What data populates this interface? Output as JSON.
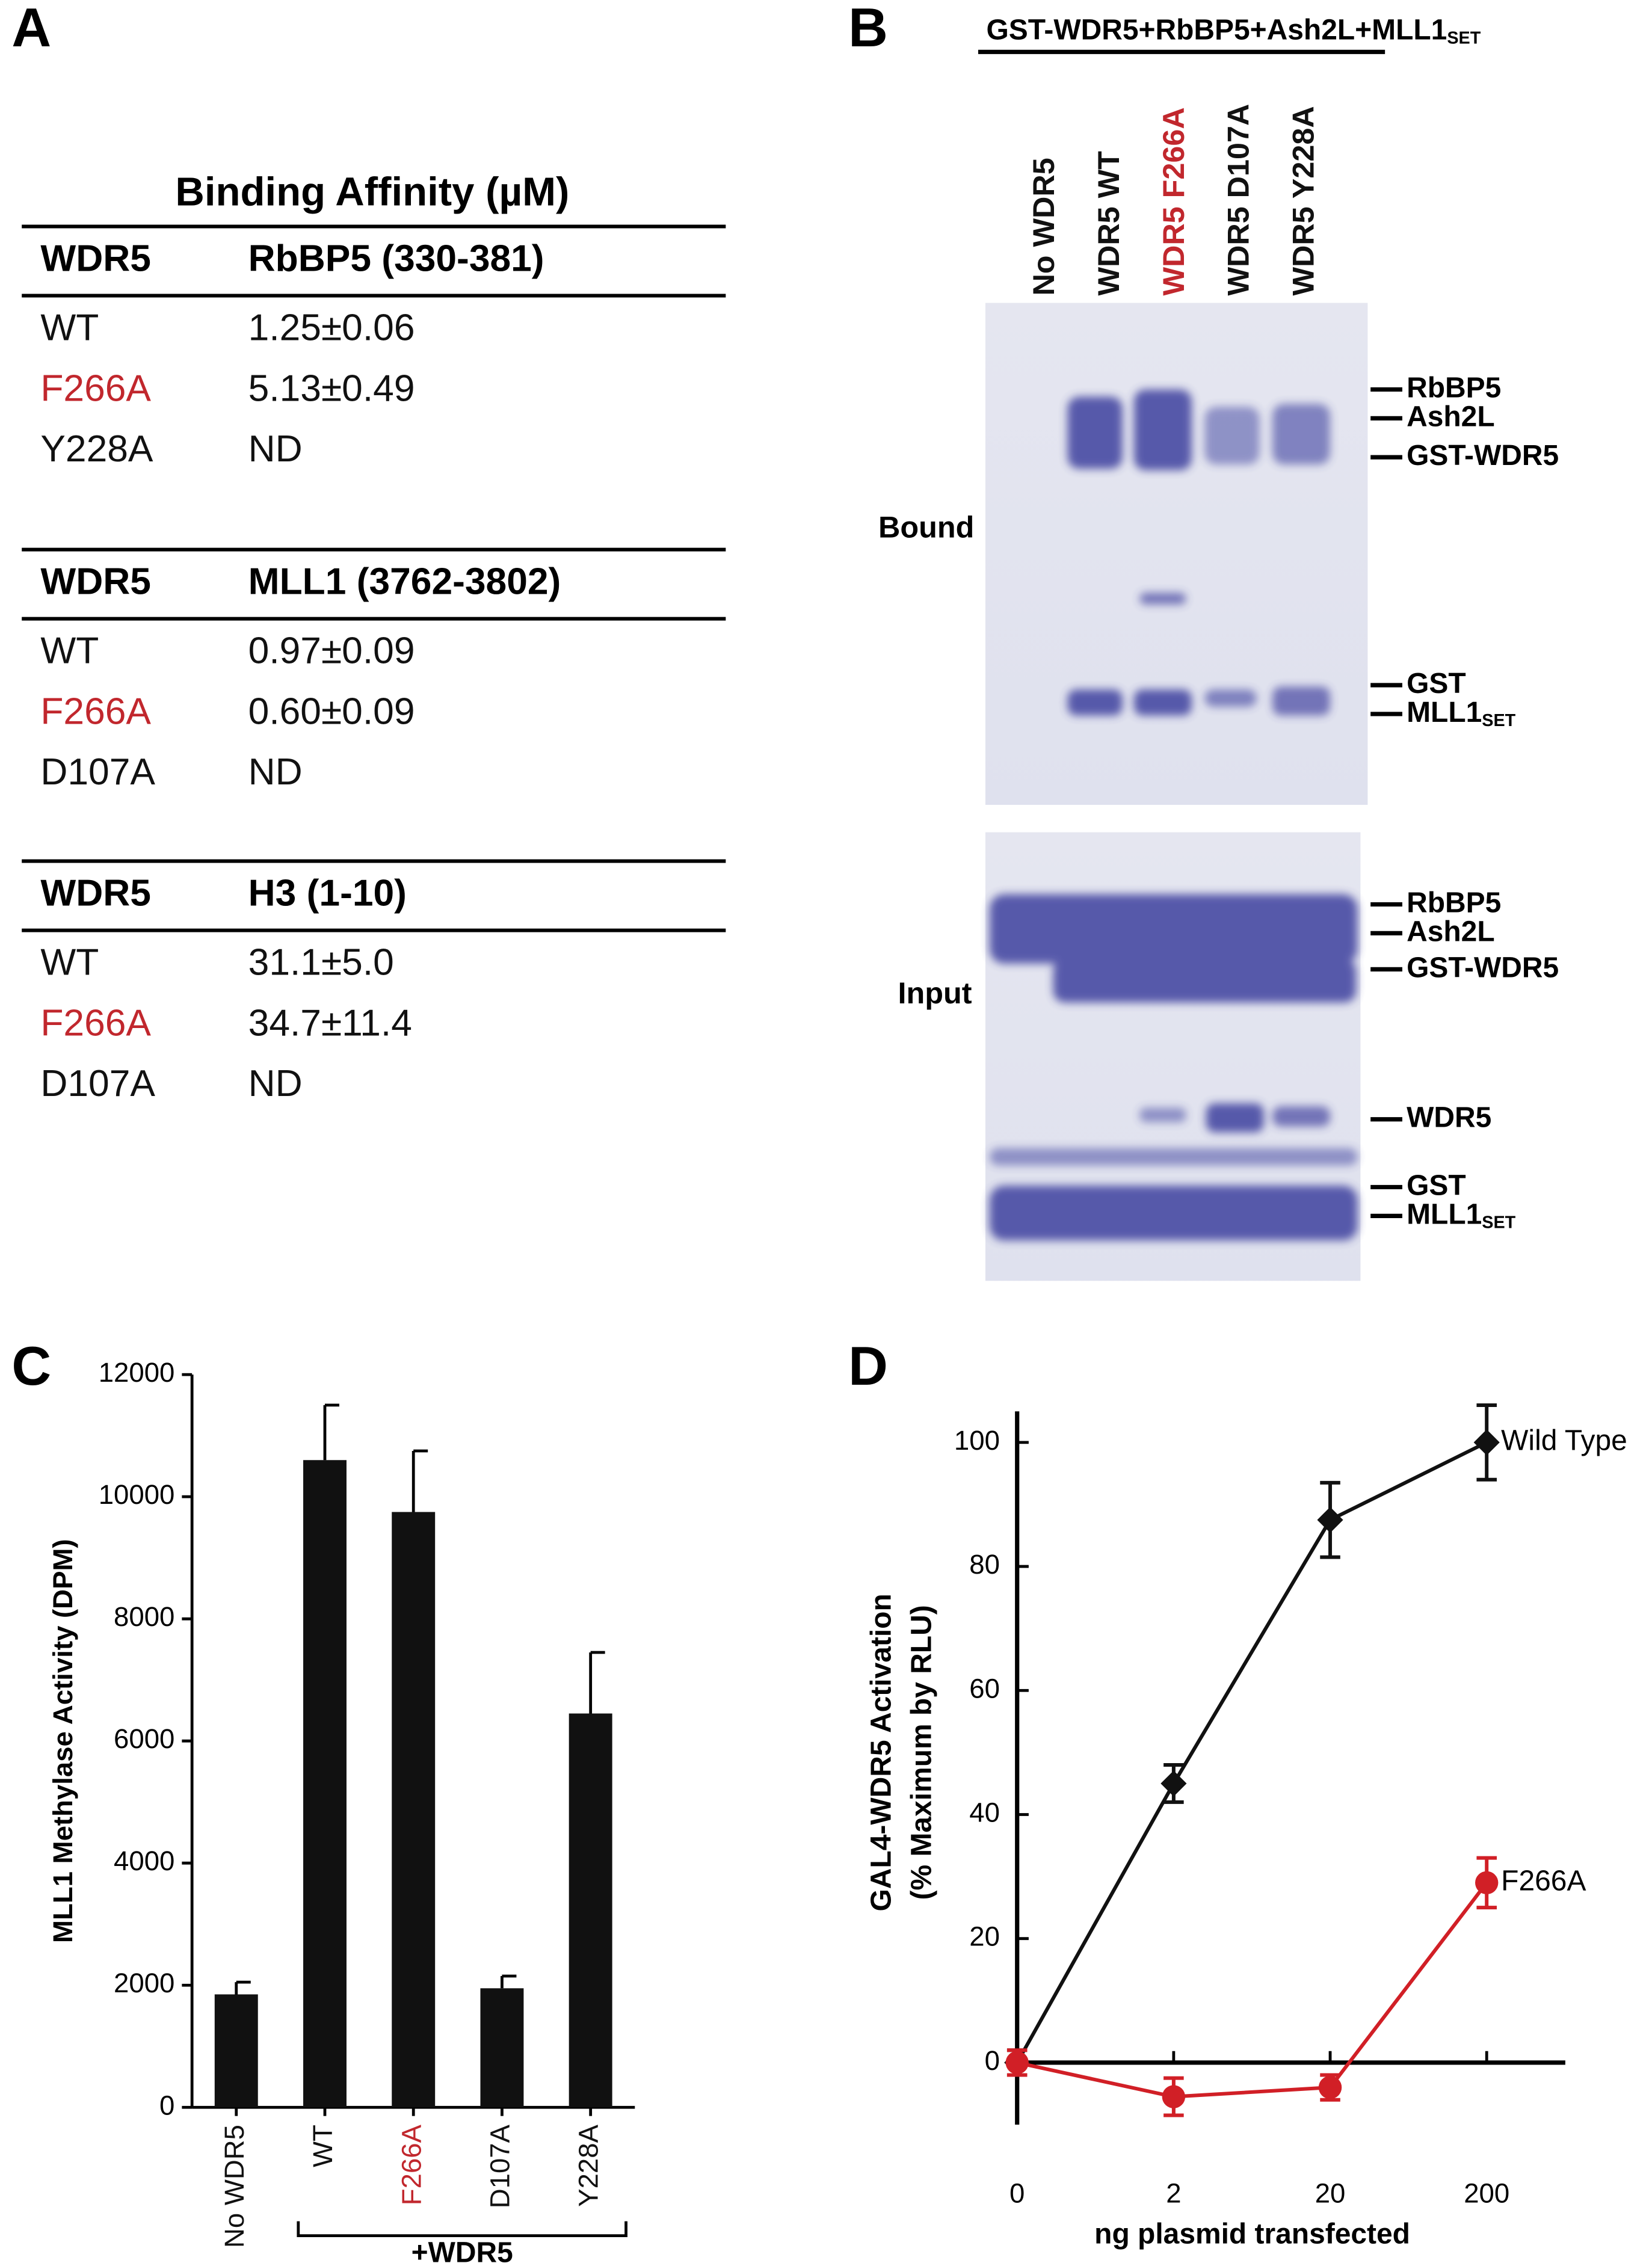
{
  "panel_a": {
    "letter": "A",
    "title": "Binding Affinity (µM)",
    "highlight": "F266A",
    "highlight_color": "#c1272d",
    "tables": [
      {
        "header": [
          "WDR5",
          "RbBP5 (330-381)"
        ],
        "rows": [
          [
            "WT",
            "1.25±0.06"
          ],
          [
            "F266A",
            "5.13±0.49"
          ],
          [
            "Y228A",
            "ND"
          ]
        ]
      },
      {
        "header": [
          "WDR5",
          "MLL1 (3762-3802)"
        ],
        "rows": [
          [
            "WT",
            "0.97±0.09"
          ],
          [
            "F266A",
            "0.60±0.09"
          ],
          [
            "D107A",
            "ND"
          ]
        ]
      },
      {
        "header": [
          "WDR5",
          "H3 (1-10)"
        ],
        "rows": [
          [
            "WT",
            "31.1±5.0"
          ],
          [
            "F266A",
            "34.7±11.4"
          ],
          [
            "D107A",
            "ND"
          ]
        ]
      }
    ]
  },
  "panel_b": {
    "letter": "B",
    "title": "GST-WDR5+RbBP5+Ash2L+MLL1",
    "title_sub": "SET",
    "lanes": [
      "No WDR5",
      "WDR5 WT",
      "WDR5 F266A",
      "WDR5 D107A",
      "WDR5 Y228A"
    ],
    "highlight_lane": 2,
    "highlight_color": "#c1272d",
    "sections": [
      {
        "label": "Bound",
        "bands": [
          {
            "label": "RbBP5"
          },
          {
            "label": "Ash2L"
          },
          {
            "label": "GST-WDR5"
          },
          {
            "label": "GST"
          },
          {
            "label": "MLL1",
            "sub": "SET"
          }
        ]
      },
      {
        "label": "Input",
        "bands": [
          {
            "label": "RbBP5"
          },
          {
            "label": "Ash2L"
          },
          {
            "label": "GST-WDR5"
          },
          {
            "label": "WDR5"
          },
          {
            "label": "GST"
          },
          {
            "label": "MLL1",
            "sub": "SET"
          }
        ]
      }
    ]
  },
  "chart_data": [
    {
      "type": "bar",
      "letter": "C",
      "ylabel": "MLL1 Methylase Activity (DPM)",
      "categories": [
        "No WDR5",
        "WT",
        "F266A",
        "D107A",
        "Y228A"
      ],
      "values": [
        1850,
        10600,
        9750,
        1950,
        6450
      ],
      "errors": [
        200,
        900,
        1000,
        200,
        1000
      ],
      "color": "#111111",
      "category_colors": [
        "#111111",
        "#111111",
        "#c1272d",
        "#111111",
        "#111111"
      ],
      "ylim": [
        0,
        12000
      ],
      "yticks": [
        0,
        2000,
        4000,
        6000,
        8000,
        10000,
        12000
      ],
      "group_label": "+WDR5"
    },
    {
      "type": "line",
      "letter": "D",
      "ylabel": [
        "GAL4-WDR5 Activation",
        "(% Maximum by RLU)"
      ],
      "xlabel": "ng plasmid transfected",
      "categories": [
        "0",
        "2",
        "20",
        "200"
      ],
      "series": [
        {
          "name": "Wild Type",
          "color": "#111111",
          "marker": "diamond",
          "values": [
            0,
            45,
            87.5,
            100
          ],
          "errors": [
            2,
            3,
            6,
            6
          ]
        },
        {
          "name": "F266A",
          "color": "#d11f26",
          "marker": "circle",
          "values": [
            0,
            -5.5,
            -4,
            29
          ],
          "errors": [
            2,
            3,
            2,
            4
          ]
        }
      ],
      "ylim": [
        -10,
        105
      ],
      "yticks": [
        0,
        20,
        40,
        60,
        80,
        100
      ]
    }
  ]
}
